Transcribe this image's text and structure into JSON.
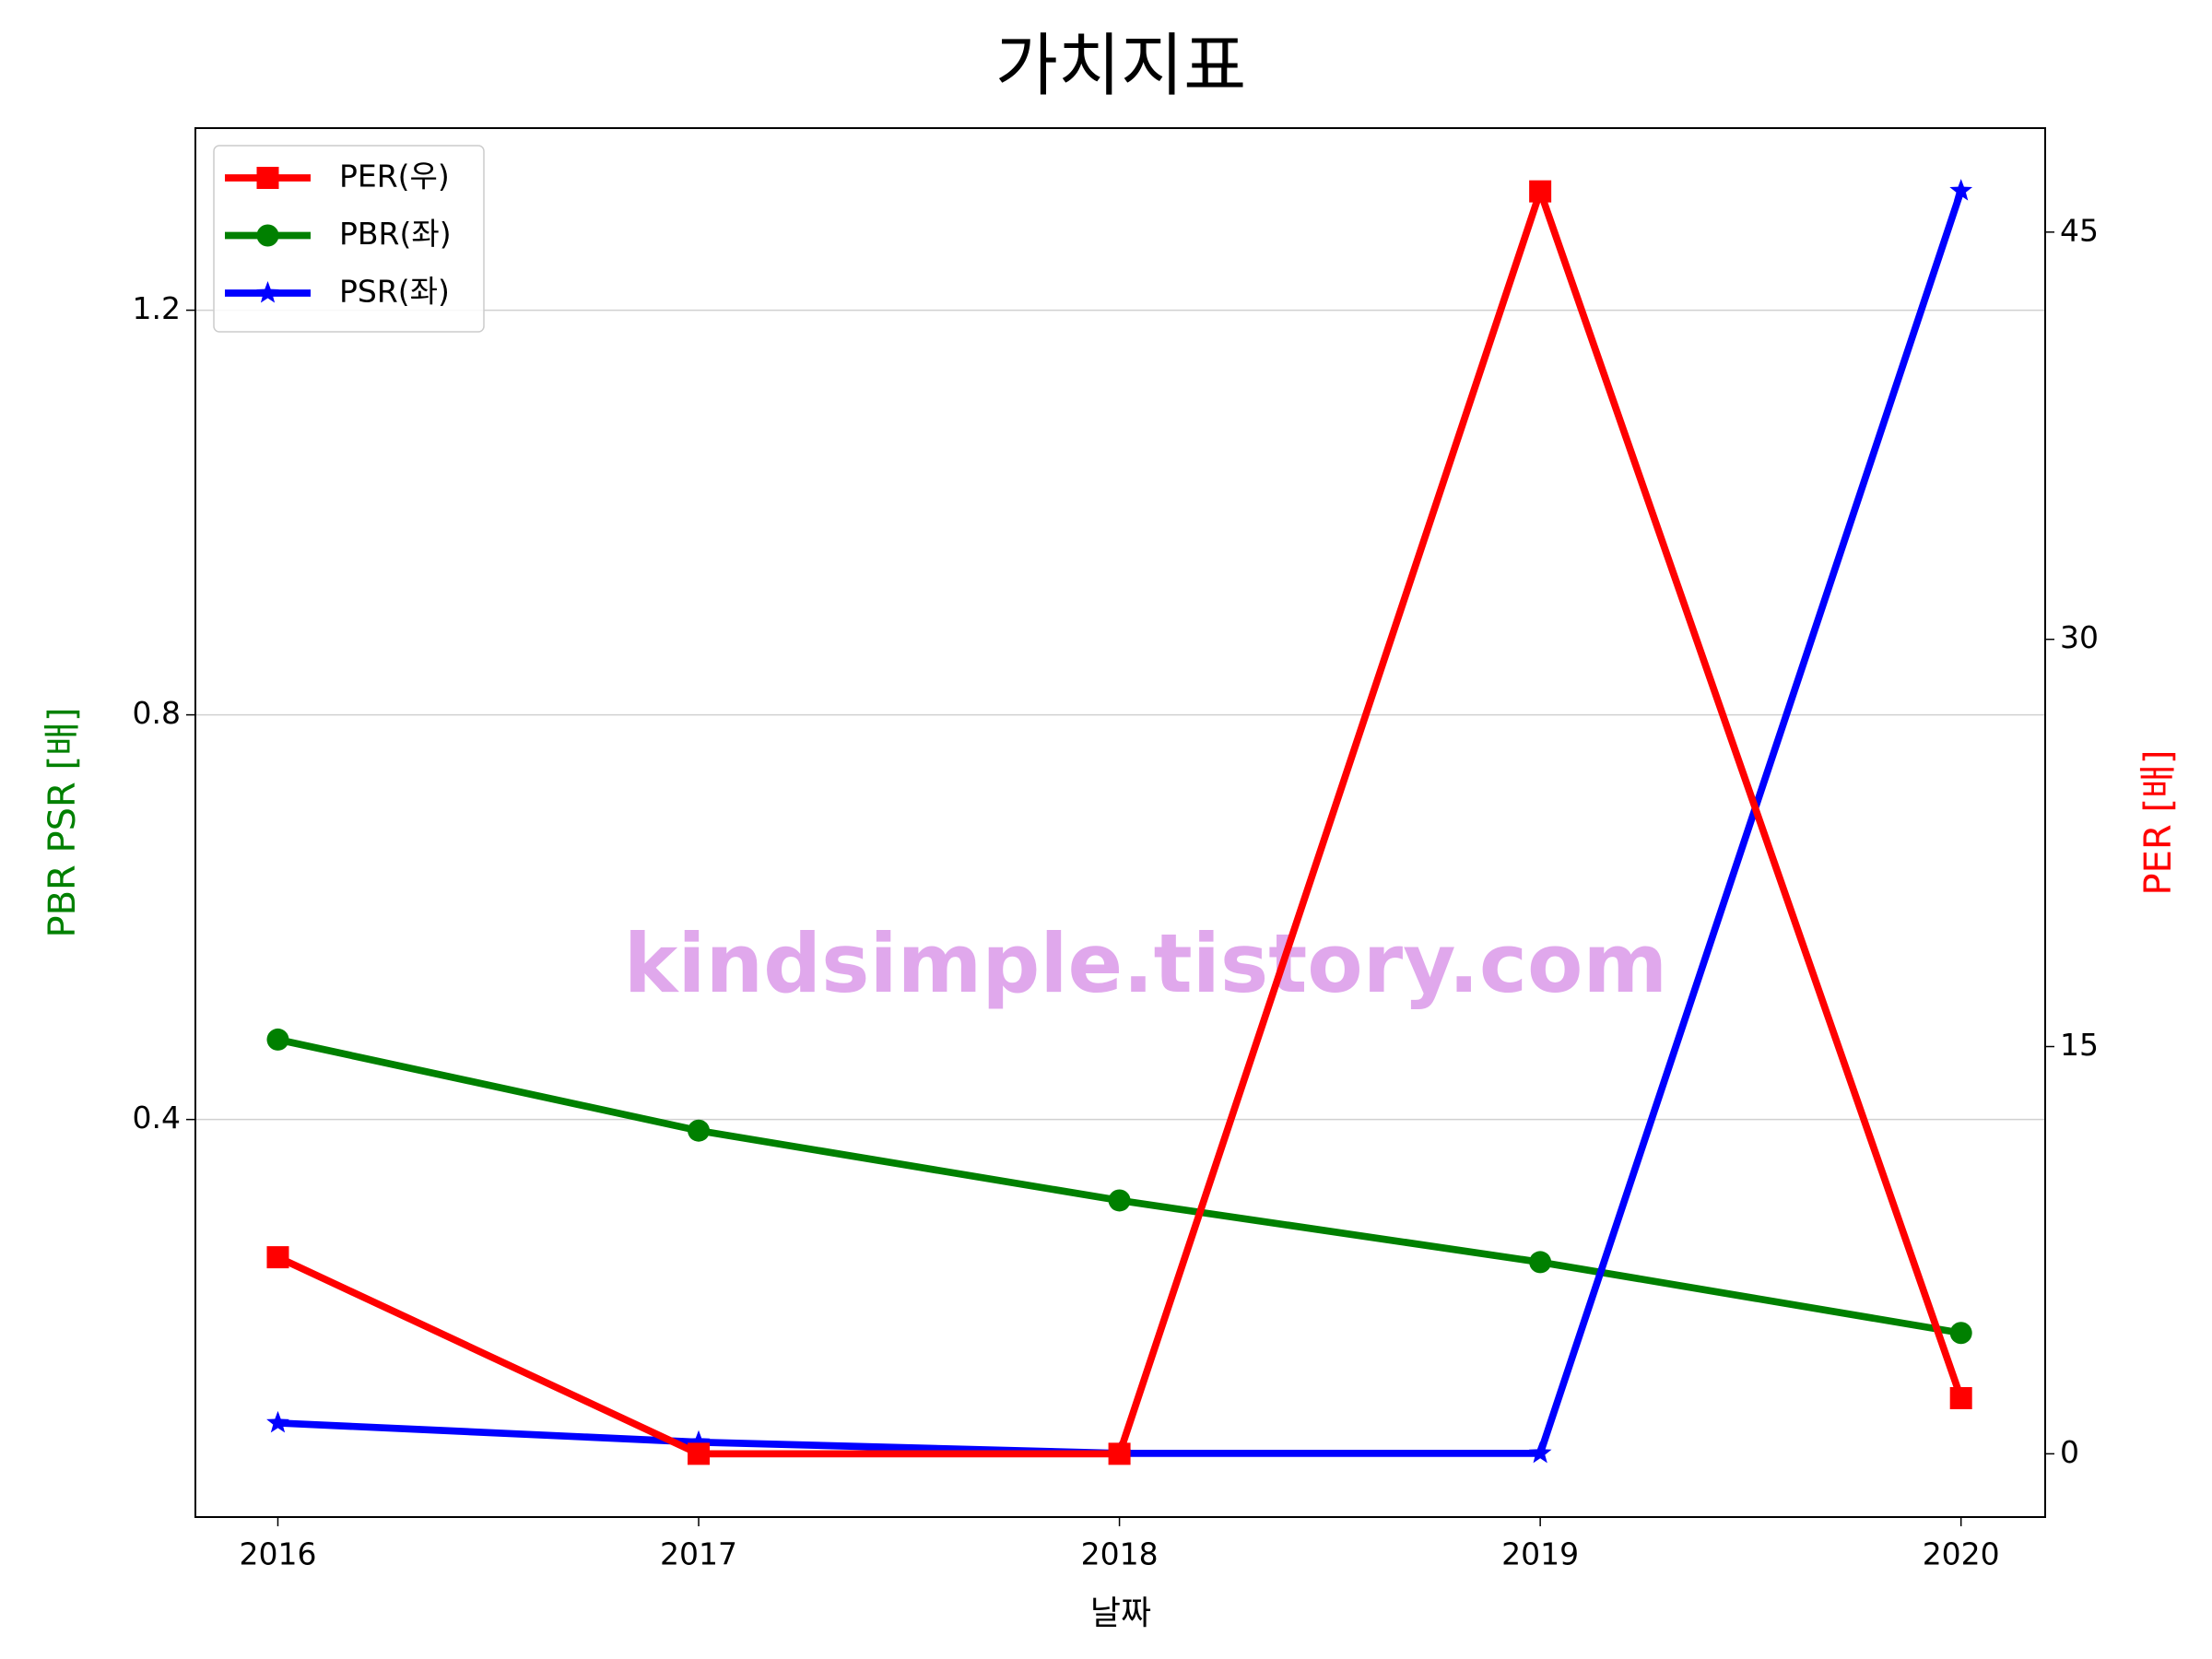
{
  "chart_data": {
    "type": "line",
    "title": "가치지표",
    "x_label": "날짜",
    "y_label": "PBR PSR [배]",
    "y2_label": "PER [배]",
    "y_label_color": "green",
    "y2_label_color": "red",
    "x": [
      2016,
      2017,
      2018,
      2019,
      2020
    ],
    "xlim": [
      2015.804,
      2020.2
    ],
    "xticks": [
      2016,
      2017,
      2018,
      2019,
      2020
    ],
    "ylim": [
      0.007,
      1.38
    ],
    "yticks": [
      0.4,
      0.8,
      1.2
    ],
    "y2lim": [
      -2.33,
      48.83
    ],
    "y2ticks": [
      0,
      15,
      30,
      45
    ],
    "grid": true,
    "legend_loc": "upper left",
    "watermark": "kindsimple.tistory.com",
    "series": [
      {
        "name": "PER(우)",
        "color": "#ff0000",
        "marker": "square",
        "axis": "y2",
        "values": [
          7.24,
          0,
          0,
          46.5,
          2.05
        ]
      },
      {
        "name": "PBR(좌)",
        "color": "#008000",
        "marker": "circle",
        "axis": "y",
        "values": [
          0.479,
          0.389,
          0.32,
          0.259,
          0.189
        ]
      },
      {
        "name": "PSR(좌)",
        "color": "#0000ff",
        "marker": "star",
        "axis": "y",
        "values": [
          0.1,
          0.081,
          0.07,
          0.07,
          1.318
        ]
      }
    ]
  }
}
